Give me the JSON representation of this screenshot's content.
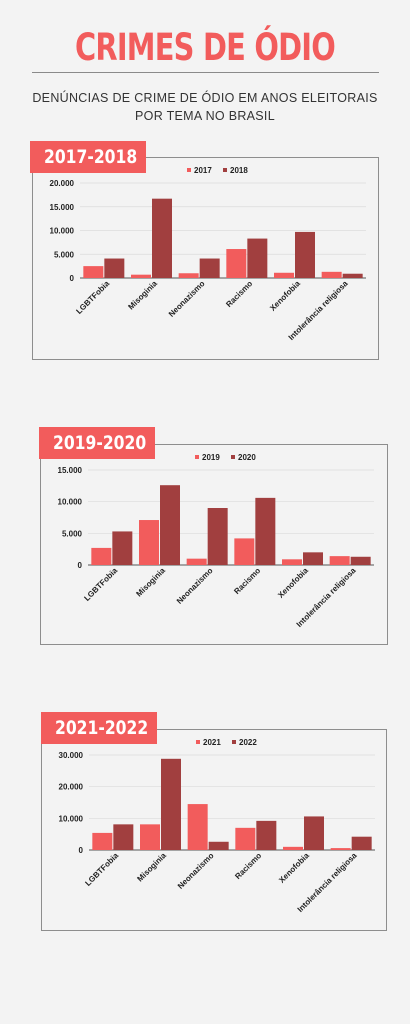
{
  "title": "CRIMES DE ÓDIO",
  "subtitle_line1": "DENÚNCIAS DE CRIME DE ÓDIO EM ANOS ELEITORAIS",
  "subtitle_line2": "POR TEMA NO BRASIL",
  "colors": {
    "accent": "#f25c5c",
    "series_light": "#f25c5c",
    "series_dark": "#a13f3f"
  },
  "chart_data": [
    {
      "type": "bar",
      "period": "2017-2018",
      "categories": [
        "LGBTFobia",
        "Misoginia",
        "Neonazismo",
        "Racismo",
        "Xenofobia",
        "Intolerância religiosa"
      ],
      "series": [
        {
          "name": "2017",
          "values": [
            2500,
            700,
            1000,
            6100,
            1100,
            1300
          ]
        },
        {
          "name": "2018",
          "values": [
            4100,
            16700,
            4100,
            8300,
            9700,
            900
          ]
        }
      ],
      "y_ticks": [
        "0",
        "5.000",
        "10.000",
        "15.000",
        "20.000"
      ],
      "ylim": [
        0,
        20000
      ],
      "grid": true,
      "legend": "top-center"
    },
    {
      "type": "bar",
      "period": "2019-2020",
      "categories": [
        "LGBTFobia",
        "Misoginia",
        "Neonazismo",
        "Racismo",
        "Xenofobia",
        "Intolerância religiosa"
      ],
      "series": [
        {
          "name": "2019",
          "values": [
            2700,
            7100,
            1000,
            4200,
            900,
            1400
          ]
        },
        {
          "name": "2020",
          "values": [
            5300,
            12600,
            9000,
            10600,
            2000,
            1300
          ]
        }
      ],
      "y_ticks": [
        "0",
        "5.000",
        "10.000",
        "15.000"
      ],
      "ylim": [
        0,
        15000
      ],
      "grid": true,
      "legend": "top-center"
    },
    {
      "type": "bar",
      "period": "2021-2022",
      "categories": [
        "LGBTFobia",
        "Misoginia",
        "Neonazismo",
        "Racismo",
        "Xenofobia",
        "Intolerância religiosa"
      ],
      "series": [
        {
          "name": "2021",
          "values": [
            5400,
            8100,
            14500,
            7000,
            1000,
            600
          ]
        },
        {
          "name": "2022",
          "values": [
            8100,
            28800,
            2600,
            9200,
            10600,
            4200
          ]
        }
      ],
      "y_ticks": [
        "0",
        "10.000",
        "20.000",
        "30.000"
      ],
      "ylim": [
        0,
        30000
      ],
      "grid": true,
      "legend": "top-center"
    }
  ]
}
